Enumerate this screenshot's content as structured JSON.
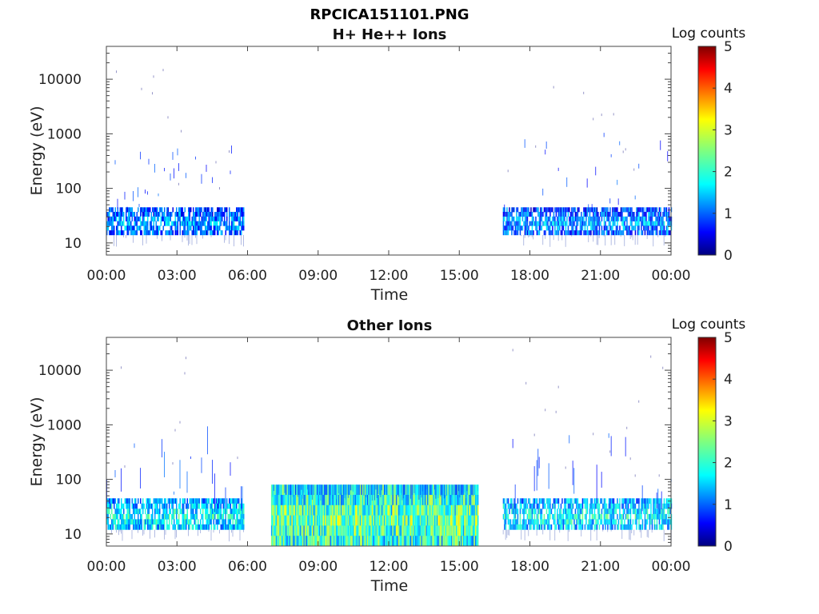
{
  "figure_title": "RPCICA151101.PNG",
  "chart_data": [
    {
      "type": "heatmap",
      "title": "H+ He++ Ions",
      "xlabel": "Time",
      "ylabel": "Energy (eV)",
      "x_ticks": [
        "00:00",
        "03:00",
        "06:00",
        "09:00",
        "12:00",
        "15:00",
        "18:00",
        "21:00",
        "00:00"
      ],
      "x_range_hours": [
        0,
        24
      ],
      "y_scale": "log",
      "y_ticks": [
        "10",
        "100",
        "1000",
        "10000"
      ],
      "y_range": [
        6,
        40000
      ],
      "colorbar": {
        "label": "Log counts",
        "ticks": [
          "0",
          "1",
          "2",
          "3",
          "4",
          "5"
        ],
        "range": [
          0,
          5
        ],
        "colormap": "jet"
      },
      "segments": [
        {
          "t_start": 0.0,
          "t_end": 5.85,
          "e_low": 14,
          "e_high": 45,
          "level": 1.4,
          "sparse_high_energy": true
        },
        {
          "t_start": 16.85,
          "t_end": 24.0,
          "e_low": 14,
          "e_high": 45,
          "level": 1.4,
          "sparse_high_energy": true
        }
      ]
    },
    {
      "type": "heatmap",
      "title": "Other Ions",
      "xlabel": "Time",
      "ylabel": "Energy (eV)",
      "x_ticks": [
        "00:00",
        "03:00",
        "06:00",
        "09:00",
        "12:00",
        "15:00",
        "18:00",
        "21:00",
        "00:00"
      ],
      "x_range_hours": [
        0,
        24
      ],
      "y_scale": "log",
      "y_ticks": [
        "10",
        "100",
        "1000",
        "10000"
      ],
      "y_range": [
        6,
        40000
      ],
      "colorbar": {
        "label": "Log counts",
        "ticks": [
          "0",
          "1",
          "2",
          "3",
          "4",
          "5"
        ],
        "range": [
          0,
          5
        ],
        "colormap": "jet"
      },
      "segments": [
        {
          "t_start": 0.0,
          "t_end": 5.85,
          "e_low": 12,
          "e_high": 45,
          "level": 1.9,
          "sparse_high_energy": true
        },
        {
          "t_start": 7.0,
          "t_end": 15.8,
          "e_low": 6,
          "e_high": 80,
          "level": 2.4,
          "sparse_high_energy": false
        },
        {
          "t_start": 16.85,
          "t_end": 24.0,
          "e_low": 12,
          "e_high": 45,
          "level": 1.9,
          "sparse_high_energy": true
        }
      ]
    }
  ]
}
